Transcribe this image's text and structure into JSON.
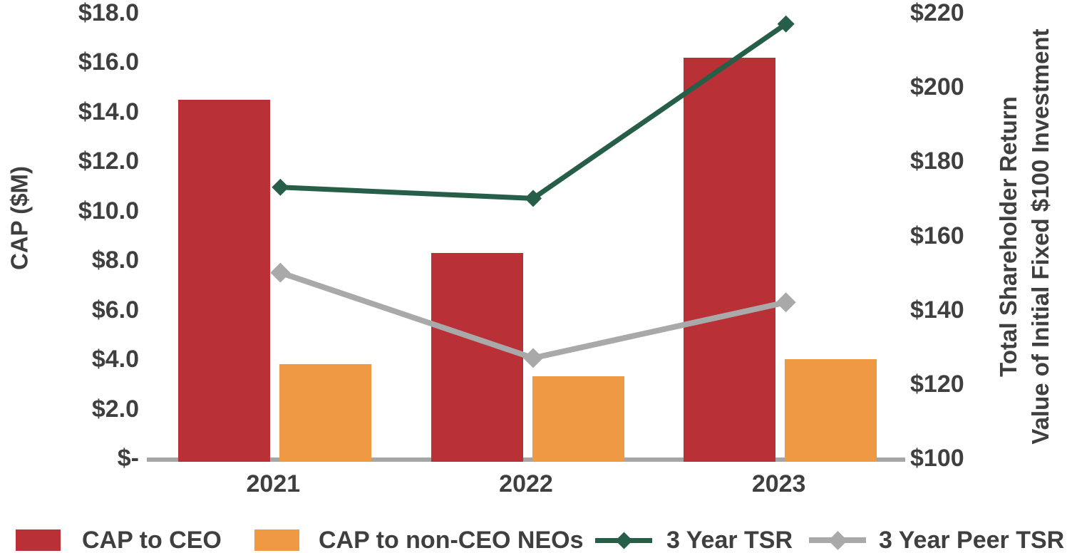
{
  "chart_data": {
    "type": "combo-bar-line",
    "categories": [
      "2021",
      "2022",
      "2023"
    ],
    "bar_series": [
      {
        "name": "CAP to CEO",
        "values": [
          14.5,
          8.3,
          16.2
        ],
        "color": "#b93036"
      },
      {
        "name": "CAP to non-CEO NEOs",
        "values": [
          3.8,
          3.3,
          4.0
        ],
        "color": "#ef9944"
      }
    ],
    "line_series": [
      {
        "name": "3 Year TSR",
        "values": [
          173,
          170,
          217
        ],
        "color": "#265e48",
        "marker": "diamond"
      },
      {
        "name": "3 Year Peer TSR",
        "values": [
          150,
          127,
          142
        ],
        "color": "#a9a9a9",
        "marker": "diamond"
      }
    ],
    "left_axis": {
      "title": "CAP ($M)",
      "ticks": [
        "$18.0",
        "$16.0",
        "$14.0",
        "$12.0",
        "$10.0",
        "$8.0",
        "$6.0",
        "$4.0",
        "$2.0",
        "$-"
      ],
      "min": 0,
      "max": 18,
      "tick_step": 2
    },
    "right_axis": {
      "title_line1": "Total Shareholder Return",
      "title_line2": "Value of Initial Fixed $100 Investment",
      "ticks": [
        "$220",
        "$200",
        "$180",
        "$160",
        "$140",
        "$120",
        "$100"
      ],
      "min": 100,
      "max": 220,
      "tick_step": 20
    },
    "x_axis": {
      "labels": [
        "2021",
        "2022",
        "2023"
      ]
    },
    "legend": [
      {
        "label": "CAP to CEO",
        "swatch": "rect",
        "color": "#b93036"
      },
      {
        "label": "CAP to non-CEO NEOs",
        "swatch": "rect",
        "color": "#ef9944"
      },
      {
        "label": "3 Year TSR",
        "swatch": "line-diamond",
        "color": "#265e48"
      },
      {
        "label": "3 Year Peer TSR",
        "swatch": "line-diamond",
        "color": "#a9a9a9"
      }
    ],
    "colors": {
      "text": "#3f3f3f",
      "axis_line": "#a6a6a6",
      "background": "#ffffff"
    },
    "layout_hints": {
      "grid": false,
      "legend_position": "bottom",
      "bars_on_left_axis": true,
      "lines_on_right_axis": true
    }
  }
}
